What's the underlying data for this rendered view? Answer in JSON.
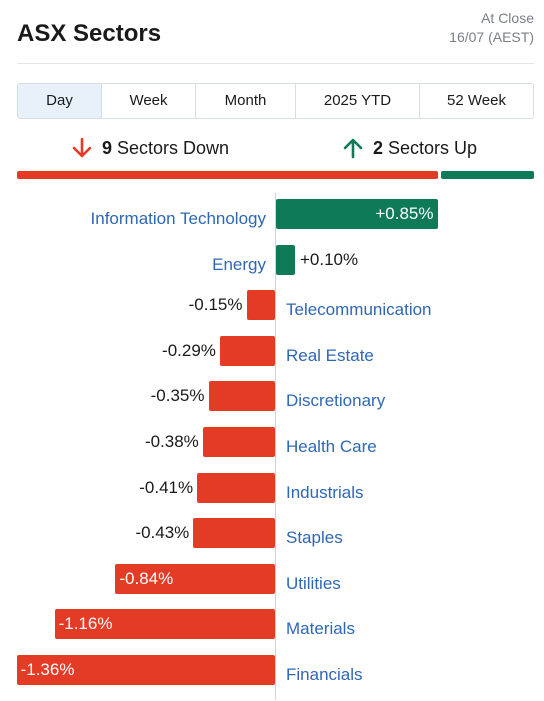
{
  "header": {
    "title": "ASX Sectors",
    "status_line1": "At Close",
    "status_line2": "16/07 (AEST)"
  },
  "tabs": [
    {
      "label": "Day",
      "active": true
    },
    {
      "label": "Week",
      "active": false
    },
    {
      "label": "Month",
      "active": false
    },
    {
      "label": "2025 YTD",
      "active": false
    },
    {
      "label": "52 Week",
      "active": false
    }
  ],
  "summary": {
    "down_count": "9",
    "down_label": "Sectors Down",
    "up_count": "2",
    "up_label": "Sectors Up"
  },
  "colors": {
    "up": "#0e7a57",
    "down": "#e43b26",
    "link": "#2f67b5"
  },
  "chart_data": {
    "type": "bar",
    "orientation": "horizontal",
    "categories": [
      "Information Technology",
      "Energy",
      "Telecommunication",
      "Real Estate",
      "Discretionary",
      "Health Care",
      "Industrials",
      "Staples",
      "Utilities",
      "Materials",
      "Financials"
    ],
    "values": [
      0.85,
      0.1,
      -0.15,
      -0.29,
      -0.35,
      -0.38,
      -0.41,
      -0.43,
      -0.84,
      -1.16,
      -1.36
    ],
    "labels": [
      "+0.85%",
      "+0.10%",
      "-0.15%",
      "-0.29%",
      "-0.35%",
      "-0.38%",
      "-0.41%",
      "-0.43%",
      "-0.84%",
      "-1.16%",
      "-1.36%"
    ],
    "unit": "%",
    "grid": false
  }
}
